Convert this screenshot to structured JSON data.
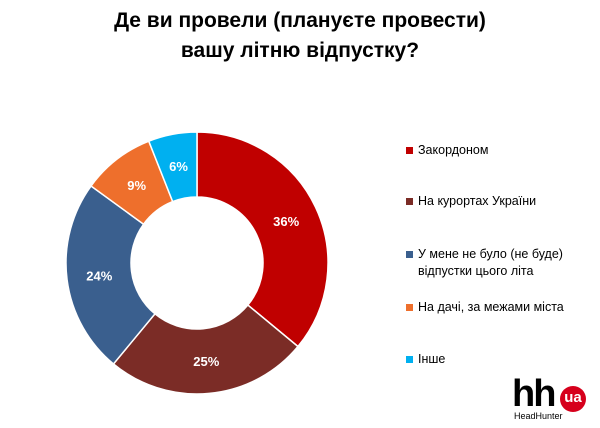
{
  "title": {
    "line1": "Де ви провели (плануєте провести)",
    "line2": "вашу літню відпустку?"
  },
  "chart_data": {
    "type": "pie",
    "donut": true,
    "categories": [
      "Закордоном",
      "На курортах України",
      "У мене не було (не буде)\nвідпустки цього літа",
      "На дачі, за межами міста",
      "Інше"
    ],
    "values": [
      36,
      25,
      24,
      9,
      6
    ],
    "value_labels": [
      "36%",
      "25%",
      "24%",
      "9%",
      "6%"
    ],
    "colors": [
      "#c00000",
      "#7b2c26",
      "#3a5f8e",
      "#ee6f2c",
      "#00b0f0"
    ],
    "legend_position": "right"
  },
  "logo": {
    "mark": "hh",
    "badge": "ua",
    "caption": "HeadHunter"
  }
}
